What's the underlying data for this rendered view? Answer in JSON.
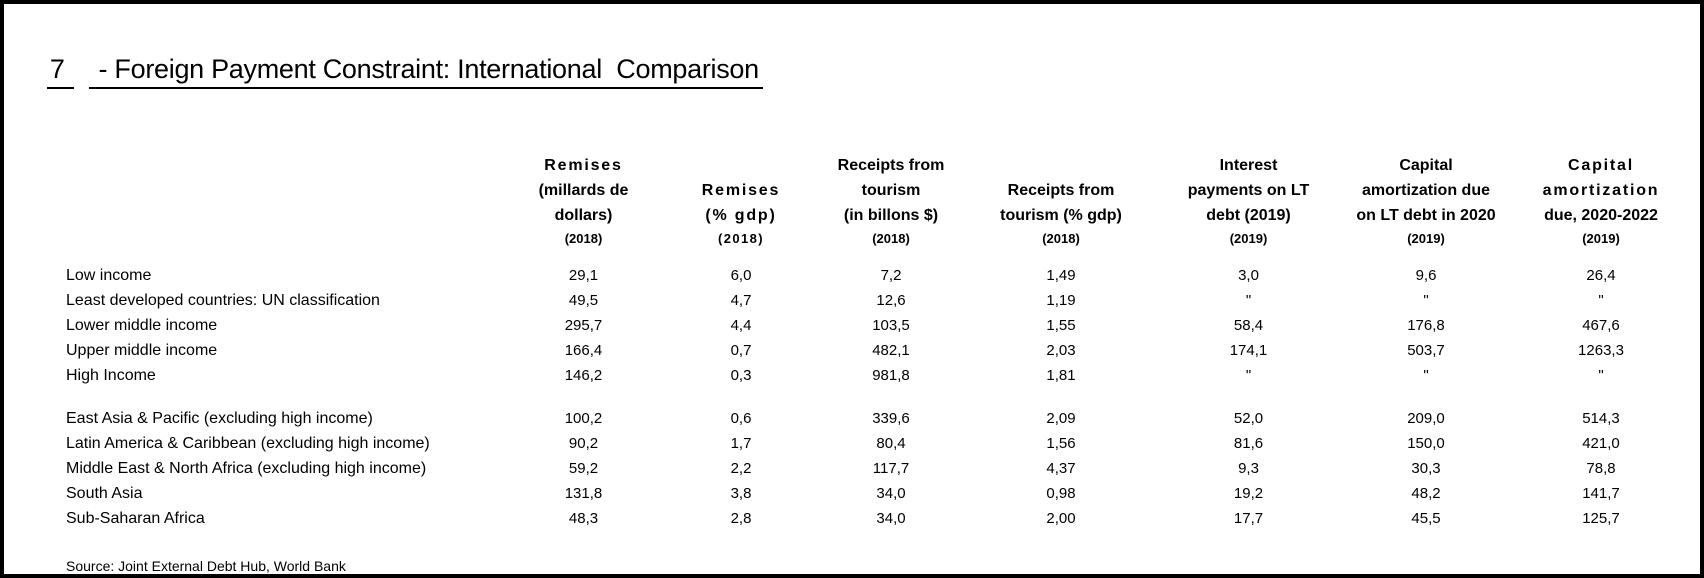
{
  "title": {
    "number": "7",
    "text": "- Foreign Payment Constraint: International  Comparison"
  },
  "table": {
    "row_header_label": "",
    "columns": [
      {
        "lines": [
          "Remises",
          "(millards de",
          "dollars)"
        ],
        "year": "(2018)"
      },
      {
        "lines": [
          "Remises",
          "(% gdp)"
        ],
        "year": "(2018)"
      },
      {
        "lines": [
          "Receipts from",
          "tourism",
          "(in billons $)"
        ],
        "year": "(2018)"
      },
      {
        "lines": [
          "Receipts from",
          "tourism (% gdp)"
        ],
        "year": "(2018)"
      },
      {
        "lines": [
          "Interest",
          "payments on LT",
          "debt (2019)"
        ],
        "year": "(2019)"
      },
      {
        "lines": [
          "Capital",
          "amortization due",
          "on LT debt in 2020"
        ],
        "year": "(2019)"
      },
      {
        "lines": [
          "Capital amortization",
          "due, 2020-2022"
        ],
        "year": "(2019)"
      }
    ],
    "groups": [
      {
        "name": "income-groups",
        "rows": [
          {
            "label": "Low income",
            "values": [
              "29,1",
              "6,0",
              "7,2",
              "1,49",
              "3,0",
              "9,6",
              "26,4"
            ]
          },
          {
            "label": "Least developed countries: UN classification",
            "values": [
              "49,5",
              "4,7",
              "12,6",
              "1,19",
              "\"",
              "\"",
              "\""
            ]
          },
          {
            "label": "Lower middle income",
            "values": [
              "295,7",
              "4,4",
              "103,5",
              "1,55",
              "58,4",
              "176,8",
              "467,6"
            ]
          },
          {
            "label": "Upper middle income",
            "values": [
              "166,4",
              "0,7",
              "482,1",
              "2,03",
              "174,1",
              "503,7",
              "1263,3"
            ]
          },
          {
            "label": "High Income",
            "values": [
              "146,2",
              "0,3",
              "981,8",
              "1,81",
              "\"",
              "\"",
              "\""
            ]
          }
        ]
      },
      {
        "name": "regions",
        "rows": [
          {
            "label": "East Asia & Pacific (excluding high income)",
            "values": [
              "100,2",
              "0,6",
              "339,6",
              "2,09",
              "52,0",
              "209,0",
              "514,3"
            ]
          },
          {
            "label": "Latin America & Caribbean (excluding high income)",
            "values": [
              "90,2",
              "1,7",
              "80,4",
              "1,56",
              "81,6",
              "150,0",
              "421,0"
            ]
          },
          {
            "label": "Middle East & North Africa (excluding high income)",
            "values": [
              "59,2",
              "2,2",
              "117,7",
              "4,37",
              "9,3",
              "30,3",
              "78,8"
            ]
          },
          {
            "label": "South Asia",
            "values": [
              "131,8",
              "3,8",
              "34,0",
              "0,98",
              "19,2",
              "48,2",
              "141,7"
            ]
          },
          {
            "label": "Sub-Saharan Africa",
            "values": [
              "48,3",
              "2,8",
              "34,0",
              "2,00",
              "17,7",
              "45,5",
              "125,7"
            ]
          }
        ]
      }
    ]
  },
  "source": "Source: Joint External Debt Hub, World Bank"
}
